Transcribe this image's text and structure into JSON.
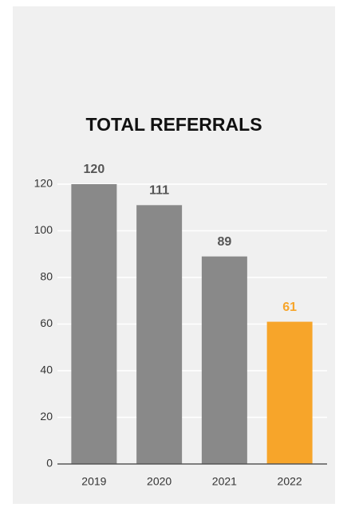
{
  "chart_data": {
    "type": "bar",
    "title": "TOTAL REFERRALS",
    "categories": [
      "2019",
      "2020",
      "2021",
      "2022"
    ],
    "values": [
      120,
      111,
      89,
      61
    ],
    "colors": [
      "#898989",
      "#898989",
      "#898989",
      "#f7a52a"
    ],
    "label_colors": [
      "#555555",
      "#555555",
      "#555555",
      "#f7a52a"
    ],
    "ylim": [
      0,
      120
    ],
    "yticks": [
      0,
      20,
      40,
      60,
      80,
      100,
      120
    ],
    "grid": true
  }
}
